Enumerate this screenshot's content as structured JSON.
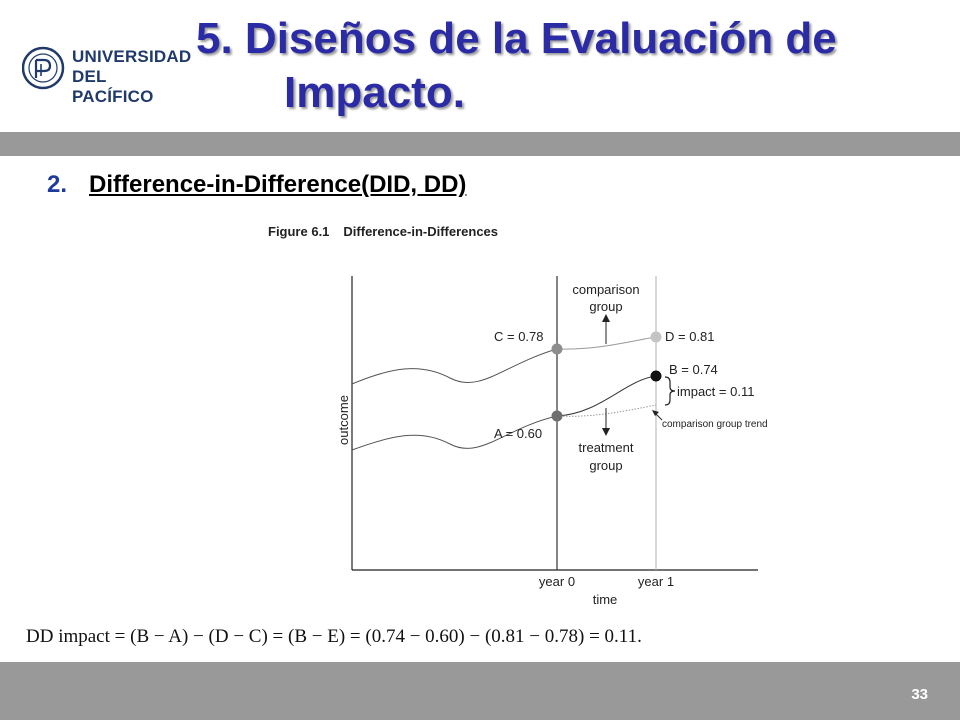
{
  "logo": {
    "line1": "UNIVERSIDAD",
    "line2": "DEL PACÍFICO"
  },
  "slide": {
    "title_line1": "5.  Diseños de la Evaluación de",
    "title_line2": "Impacto.",
    "subtitle_number": "2.",
    "subtitle_text": "Difference-in-Difference(DID, DD)",
    "page_number": "33"
  },
  "figure": {
    "label": "Figure 6.1",
    "title": "Difference-in-Differences",
    "formula": "DD impact = (B − A) − (D − C) = (B − E) = (0.74 − 0.60) − (0.81 − 0.78) = 0.11."
  },
  "chart_data": {
    "type": "line",
    "xlabel": "time",
    "ylabel": "outcome",
    "x_ticks": [
      "year 0",
      "year 1"
    ],
    "points": [
      {
        "label": "C = 0.78",
        "x": "year 0",
        "y": 0.78,
        "color": "#8c8c8c"
      },
      {
        "label": "D = 0.81",
        "x": "year 1",
        "y": 0.81,
        "color": "#c4c4c4"
      },
      {
        "label": "A = 0.60",
        "x": "year 0",
        "y": 0.6,
        "color": "#6f6f6f"
      },
      {
        "label": "B = 0.74",
        "x": "year 1",
        "y": 0.74,
        "color": "#111111"
      }
    ],
    "annotations": {
      "comparison_group": [
        "comparison",
        "group"
      ],
      "treatment_group": [
        "treatment",
        "group"
      ],
      "impact": "impact = 0.11",
      "comparison_trend": "comparison group trend"
    }
  },
  "colors": {
    "title": "#2b2ba6",
    "band": "#999999",
    "subtitle_number": "#1f3a9f"
  }
}
